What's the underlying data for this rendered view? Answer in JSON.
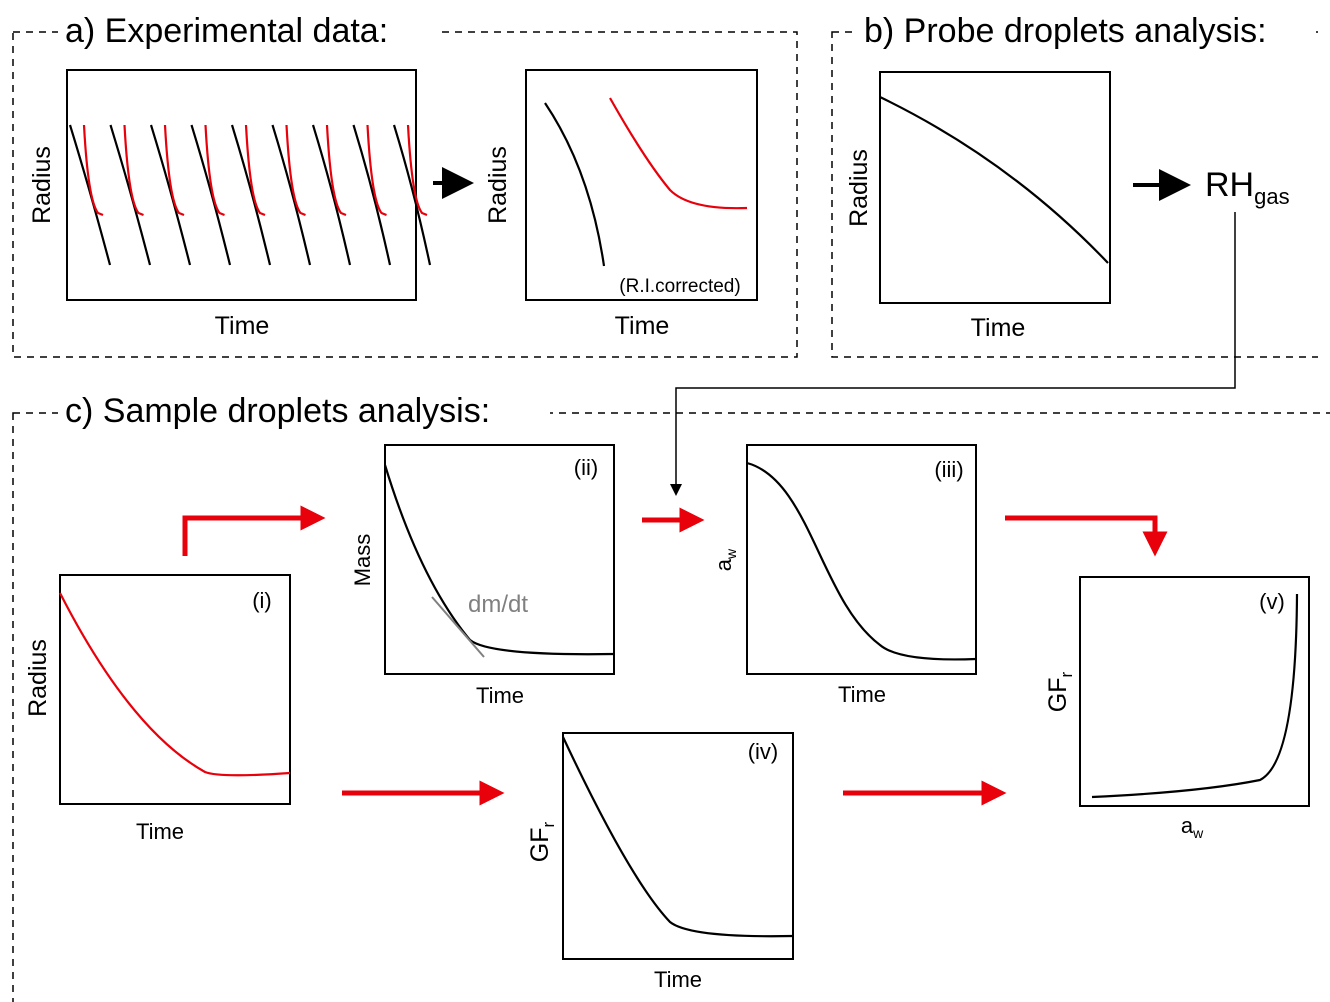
{
  "sections": {
    "a": {
      "title": "a) Experimental data:",
      "plots": [
        {
          "x_label": "Time",
          "y_label": "Radius"
        },
        {
          "x_label": "Time",
          "y_label": "Radius",
          "note": "(R.I.corrected)"
        }
      ]
    },
    "b": {
      "title": "b) Probe droplets analysis:",
      "plot": {
        "x_label": "Time",
        "y_label": "Radius"
      },
      "output": {
        "main": "RH",
        "subscript": "gas"
      }
    },
    "c": {
      "title": "c) Sample droplets analysis:",
      "panels": [
        {
          "label": "(i)",
          "x_label": "Time",
          "y_label": "Radius"
        },
        {
          "label": "(ii)",
          "x_label": "Time",
          "y_label": "Mass",
          "note": "dm/dt"
        },
        {
          "label": "(iii)",
          "x_label": "Time",
          "y_label": {
            "main": "a",
            "subscript": "w"
          }
        },
        {
          "label": "(iv)",
          "x_label": "Time",
          "y_label": {
            "main": "GF",
            "subscript": "r"
          }
        },
        {
          "label": "(v)",
          "x_label": {
            "main": "a",
            "subscript": "w"
          },
          "y_label": {
            "main": "GF",
            "subscript": "r"
          }
        }
      ]
    }
  }
}
